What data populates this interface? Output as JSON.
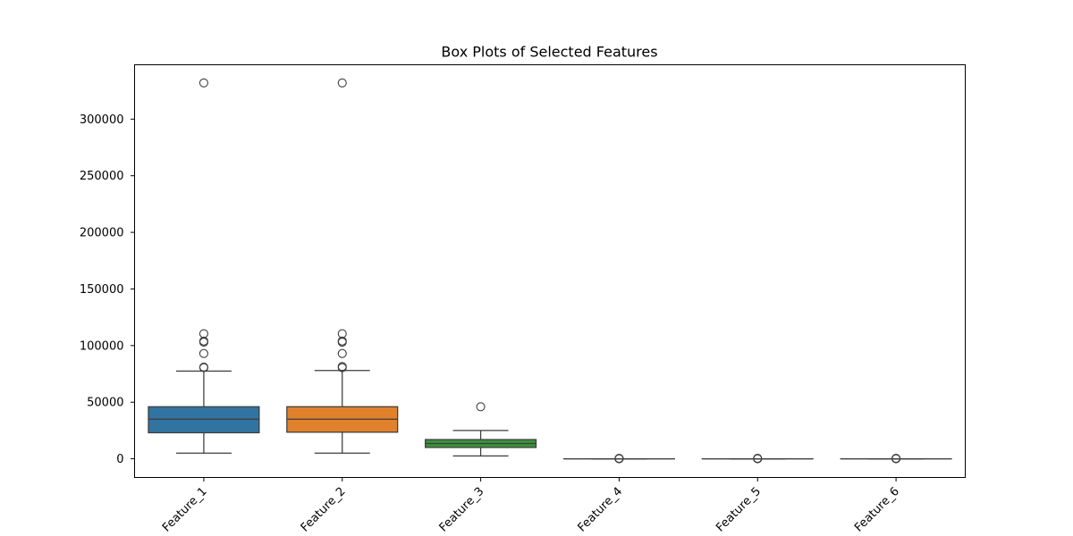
{
  "chart_data": {
    "type": "box",
    "title": "Box Plots of Selected Features",
    "xlabel": "",
    "ylabel": "",
    "ylim": [
      -16500,
      348000
    ],
    "yticks": [
      0,
      50000,
      100000,
      150000,
      200000,
      250000,
      300000
    ],
    "ytick_labels": [
      "0",
      "50000",
      "100000",
      "150000",
      "200000",
      "250000",
      "300000"
    ],
    "grid": false,
    "categories": [
      "Feature_1",
      "Feature_2",
      "Feature_3",
      "Feature_4",
      "Feature_5",
      "Feature_6"
    ],
    "boxes": [
      {
        "name": "Feature_1",
        "color": "#3274a1",
        "whisker_low": 5000,
        "q1": 23000,
        "median": 35000,
        "q3": 46000,
        "whisker_high": 77500,
        "outliers": [
          80500,
          81000,
          93000,
          103000,
          104000,
          110500,
          332000
        ]
      },
      {
        "name": "Feature_2",
        "color": "#e1812c",
        "whisker_low": 5000,
        "q1": 23500,
        "median": 35000,
        "q3": 46000,
        "whisker_high": 78000,
        "outliers": [
          80500,
          81500,
          93000,
          103000,
          104000,
          110500,
          332000
        ]
      },
      {
        "name": "Feature_3",
        "color": "#3a923a",
        "whisker_low": 2500,
        "q1": 10000,
        "median": 13500,
        "q3": 17000,
        "whisker_high": 25000,
        "outliers": [
          46000
        ]
      },
      {
        "name": "Feature_4",
        "color": "#c03d3e",
        "whisker_low": 0,
        "q1": 0,
        "median": 0,
        "q3": 0,
        "whisker_high": 0,
        "outliers": [
          0,
          200,
          400
        ]
      },
      {
        "name": "Feature_5",
        "color": "#9372b2",
        "whisker_low": 0,
        "q1": 0,
        "median": 0,
        "q3": 0,
        "whisker_high": 0,
        "outliers": [
          0,
          200,
          400
        ]
      },
      {
        "name": "Feature_6",
        "color": "#845b53",
        "whisker_low": 0,
        "q1": 0,
        "median": 0,
        "q3": 0,
        "whisker_high": 0,
        "outliers": [
          0,
          200,
          400
        ]
      }
    ]
  }
}
